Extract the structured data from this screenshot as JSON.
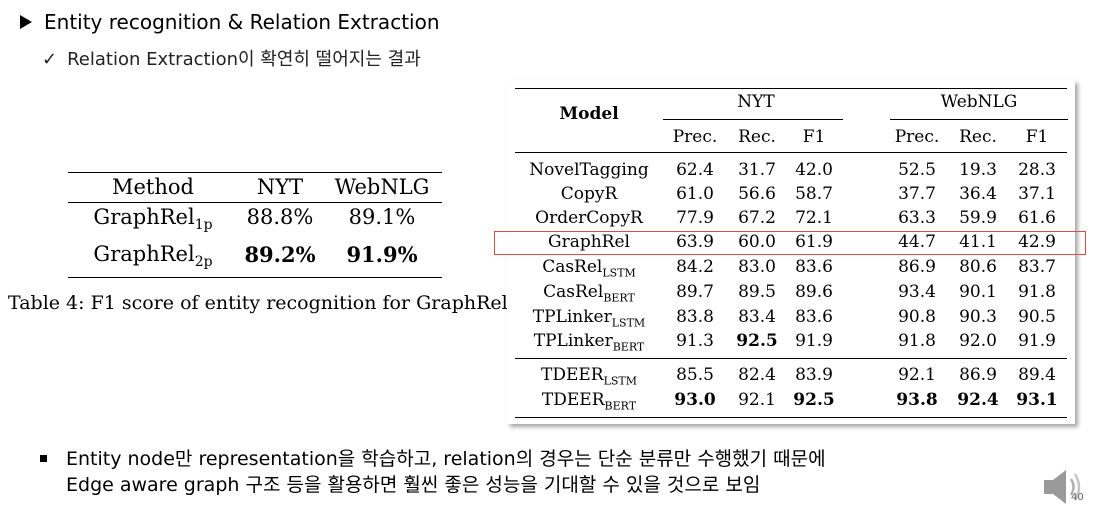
{
  "slide": {
    "heading": "Entity recognition & Relation Extraction",
    "subheading": "Relation Extraction이 확연히 떨어지는 결과",
    "bullet_line1": "Entity node만 representation을 학습하고, relation의 경우는 단순 분류만 수행했기 때문에",
    "bullet_line2": "Edge aware graph 구조 등을 활용하면 훨씬 좋은 성능을 기대할 수 있을 것으로 보임",
    "page_number": "40",
    "icons": {
      "heading_marker": "triangle-right-icon",
      "subheading_marker": "checkmark-icon",
      "bullet_marker": "square-bullet-icon",
      "audio": "speaker-icon"
    }
  },
  "table4": {
    "headers": [
      "Method",
      "NYT",
      "WebNLG"
    ],
    "rows": [
      {
        "method": "GraphRel",
        "sub": "1p",
        "nyt": "88.8%",
        "webnlg": "89.1%"
      },
      {
        "method": "GraphRel",
        "sub": "2p",
        "nyt": "89.2%",
        "webnlg": "91.9%"
      }
    ],
    "caption": "Table 4: F1 score of entity recognition for GraphRel."
  },
  "table_main": {
    "header_model": "Model",
    "group_nyt": "NYT",
    "group_webnlg": "WebNLG",
    "subheaders": [
      "Prec.",
      "Rec.",
      "F1",
      "Prec.",
      "Rec.",
      "F1"
    ],
    "rows": [
      {
        "name": "NovelTagging",
        "sub": "",
        "values": [
          "62.4",
          "31.7",
          "42.0",
          "52.5",
          "19.3",
          "28.3"
        ]
      },
      {
        "name": "CopyR",
        "sub": "",
        "values": [
          "61.0",
          "56.6",
          "58.7",
          "37.7",
          "36.4",
          "37.1"
        ]
      },
      {
        "name": "OrderCopyR",
        "sub": "",
        "values": [
          "77.9",
          "67.2",
          "72.1",
          "63.3",
          "59.9",
          "61.6"
        ]
      },
      {
        "name": "GraphRel",
        "sub": "",
        "values": [
          "63.9",
          "60.0",
          "61.9",
          "44.7",
          "41.1",
          "42.9"
        ]
      },
      {
        "name": "CasRel",
        "sub": "LSTM",
        "values": [
          "84.2",
          "83.0",
          "83.6",
          "86.9",
          "80.6",
          "83.7"
        ]
      },
      {
        "name": "CasRel",
        "sub": "BERT",
        "values": [
          "89.7",
          "89.5",
          "89.6",
          "93.4",
          "90.1",
          "91.8"
        ]
      },
      {
        "name": "TPLinker",
        "sub": "LSTM",
        "values": [
          "83.8",
          "83.4",
          "83.6",
          "90.8",
          "90.3",
          "90.5"
        ]
      },
      {
        "name": "TPLinker",
        "sub": "BERT",
        "values": [
          "91.3",
          "92.5",
          "91.9",
          "91.8",
          "92.0",
          "91.9"
        ]
      },
      {
        "name": "TDEER",
        "sub": "LSTM",
        "values": [
          "85.5",
          "82.4",
          "83.9",
          "92.1",
          "86.9",
          "89.4"
        ]
      },
      {
        "name": "TDEER",
        "sub": "BERT",
        "values": [
          "93.0",
          "92.1",
          "92.5",
          "93.8",
          "92.4",
          "93.1"
        ]
      }
    ],
    "bold_cells": [
      [
        7,
        1
      ],
      [
        9,
        0
      ],
      [
        9,
        2
      ],
      [
        9,
        3
      ],
      [
        9,
        4
      ],
      [
        9,
        5
      ]
    ],
    "highlight_row": 3,
    "highlight_color": "#e04a4a"
  }
}
